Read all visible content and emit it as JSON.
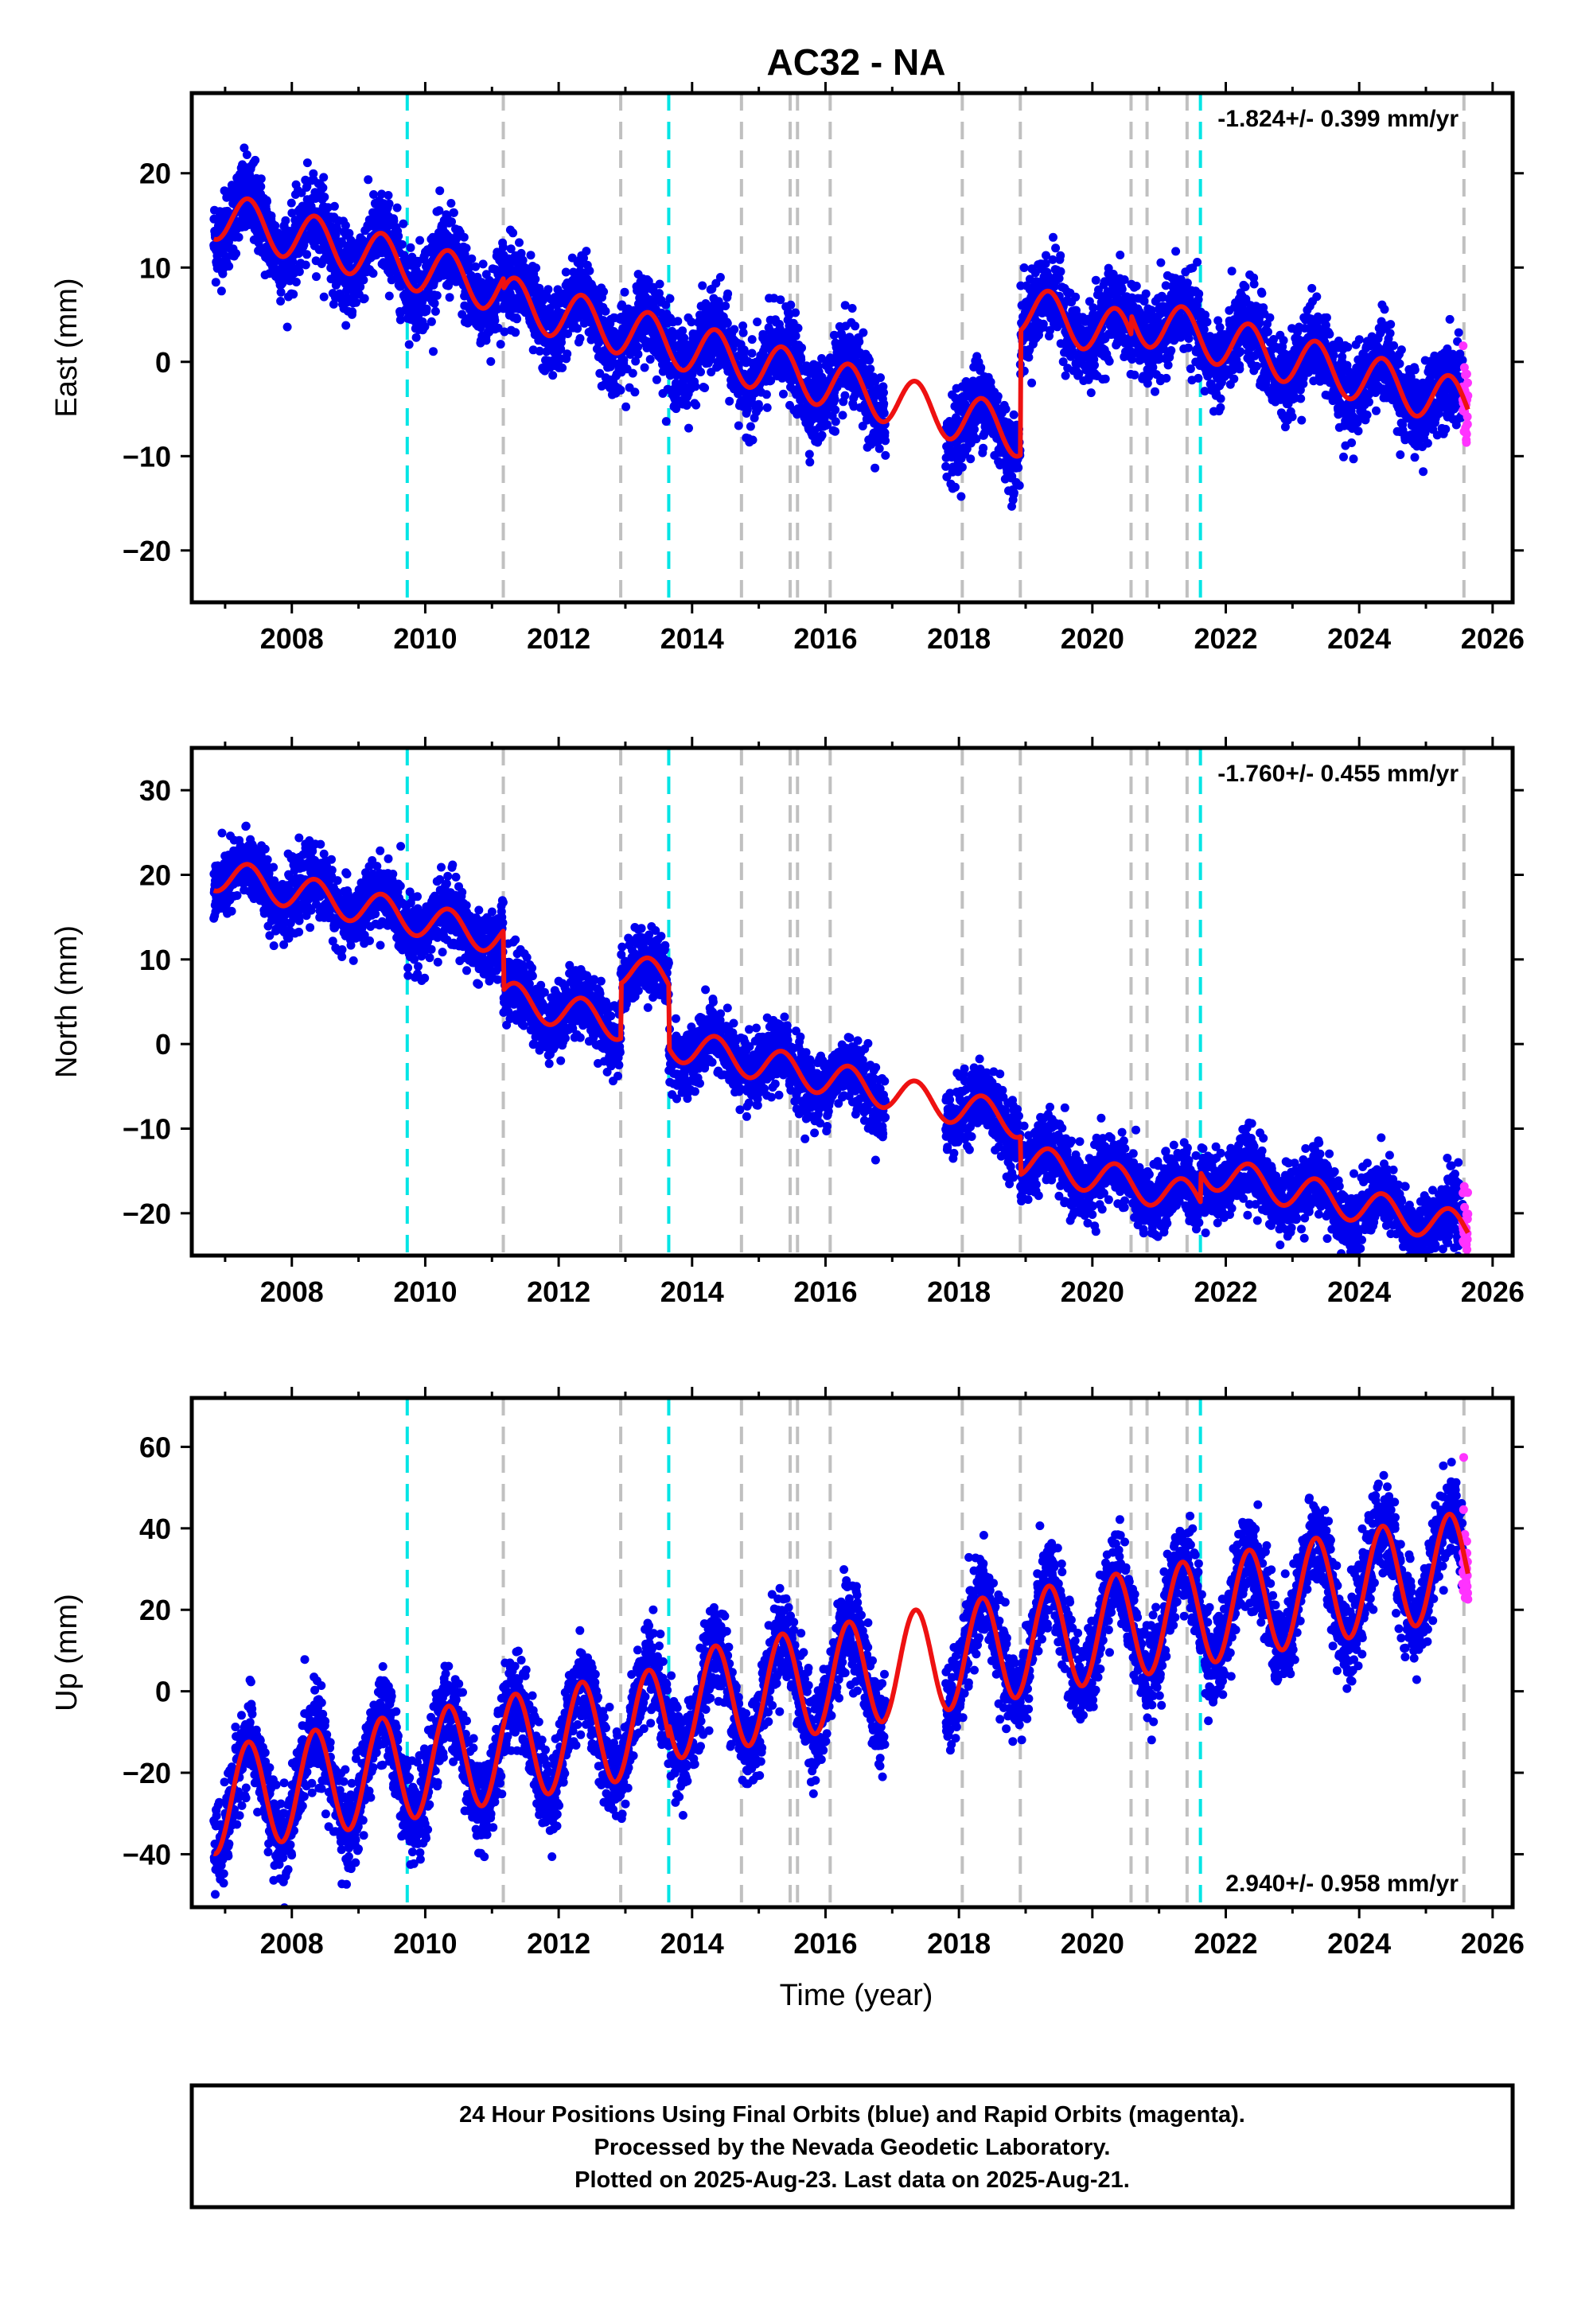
{
  "title": "AC32 - NA",
  "x_axis_label": "Time (year)",
  "caption_lines": [
    "24 Hour Positions Using Final Orbits (blue) and Rapid Orbits (magenta).",
    "Processed by the Nevada Geodetic Laboratory.",
    "Plotted on 2025-Aug-23. Last data on 2025-Aug-21."
  ],
  "colors": {
    "final_orbits": "#0000ee",
    "rapid_orbits": "#ff33ff",
    "model_fit": "#ee1111",
    "equipment_change_lines": "#c0c0c0",
    "earthquake_lines": "#00e5e5"
  },
  "chart_data": [
    {
      "type": "scatter",
      "ylabel": "East (mm)",
      "xlim": [
        2006.5,
        2026.3
      ],
      "ylim": [
        -25.5,
        28.5
      ],
      "x_ticks": [
        "2008",
        "2010",
        "2012",
        "2014",
        "2016",
        "2018",
        "2020",
        "2022",
        "2024",
        "2026"
      ],
      "y_ticks": [
        "-20",
        "-10",
        "0",
        "10",
        "20"
      ],
      "rate_text": "-1.824+/- 0.399 mm/yr",
      "rate_position": "top-right",
      "vertical_lines": {
        "equipment_change": [
          2011.17,
          2012.93,
          2014.74,
          2015.47,
          2015.58,
          2016.07,
          2018.05,
          2018.92,
          2020.58,
          2020.82,
          2021.42,
          2025.57
        ],
        "earthquake": [
          2009.73,
          2013.65,
          2021.62
        ]
      },
      "model": {
        "series_name": "model fit",
        "trend_rate": -1.824,
        "annual_amplitude": 2.6,
        "segments": [
          {
            "from": 2006.83,
            "to": 2011.17,
            "offset_at_2016": -1.1
          },
          {
            "from": 2011.17,
            "to": 2018.92,
            "offset_at_2016": -2.2
          },
          {
            "from": 2018.92,
            "to": 2020.58,
            "offset_at_2016": 11.0
          },
          {
            "from": 2020.58,
            "to": 2025.63,
            "offset_at_2016": 13.0
          }
        ]
      },
      "scatter_noise_mm": 2.2,
      "final_orbits_range": [
        2006.83,
        2025.55
      ],
      "rapid_orbits_range": [
        2025.55,
        2025.63
      ],
      "data_gap": [
        2016.9,
        2017.8
      ]
    },
    {
      "type": "scatter",
      "ylabel": "North (mm)",
      "xlim": [
        2006.5,
        2026.3
      ],
      "ylim": [
        -25,
        35
      ],
      "x_ticks": [
        "2008",
        "2010",
        "2012",
        "2014",
        "2016",
        "2018",
        "2020",
        "2022",
        "2024",
        "2026"
      ],
      "y_ticks": [
        "-20",
        "-10",
        "0",
        "10",
        "20",
        "30"
      ],
      "rate_text": "-1.760+/- 0.455 mm/yr",
      "rate_position": "top-right",
      "vertical_lines": {
        "equipment_change": [
          2011.17,
          2012.93,
          2014.74,
          2015.47,
          2015.58,
          2016.07,
          2018.05,
          2018.92,
          2020.58,
          2020.82,
          2021.42,
          2025.57
        ],
        "earthquake": [
          2009.73,
          2013.65,
          2021.62
        ]
      },
      "model": {
        "series_name": "model fit",
        "trend_rate": -1.76,
        "annual_amplitude": 2.0,
        "segments": [
          {
            "from": 2006.83,
            "to": 2011.17,
            "offset_at_2016": 4.0
          },
          {
            "from": 2011.17,
            "to": 2012.93,
            "offset_at_2016": -3.0
          },
          {
            "from": 2012.93,
            "to": 2013.65,
            "offset_at_2016": 3.5
          },
          {
            "from": 2013.65,
            "to": 2018.92,
            "offset_at_2016": -4.0
          },
          {
            "from": 2018.92,
            "to": 2021.62,
            "offset_at_2016": -8.5
          },
          {
            "from": 2021.62,
            "to": 2025.63,
            "offset_at_2016": -5.0
          }
        ]
      },
      "scatter_noise_mm": 2.0,
      "final_orbits_range": [
        2006.83,
        2025.55
      ],
      "rapid_orbits_range": [
        2025.55,
        2025.63
      ],
      "data_gap": [
        2016.9,
        2017.8
      ]
    },
    {
      "type": "scatter",
      "ylabel": "Up (mm)",
      "xlim": [
        2006.5,
        2026.3
      ],
      "ylim": [
        -53,
        72
      ],
      "x_ticks": [
        "2008",
        "2010",
        "2012",
        "2014",
        "2016",
        "2018",
        "2020",
        "2022",
        "2024",
        "2026"
      ],
      "y_ticks": [
        "-40",
        "-20",
        "0",
        "20",
        "40",
        "60"
      ],
      "rate_text": "2.940+/- 0.958 mm/yr",
      "rate_position": "bottom-right",
      "vertical_lines": {
        "equipment_change": [
          2011.17,
          2012.93,
          2014.74,
          2015.47,
          2015.58,
          2016.07,
          2018.05,
          2018.92,
          2020.58,
          2020.82,
          2021.42,
          2025.57
        ],
        "earthquake": [
          2009.73,
          2013.65,
          2021.62
        ]
      },
      "model": {
        "series_name": "model fit",
        "trend_rate": 2.94,
        "annual_amplitude": 13.0,
        "segments": [
          {
            "from": 2006.83,
            "to": 2012.93,
            "offset_at_2016": 0.0
          },
          {
            "from": 2012.93,
            "to": 2013.65,
            "offset_at_2016": 0.0
          },
          {
            "from": 2013.65,
            "to": 2025.63,
            "offset_at_2016": 3.0
          }
        ]
      },
      "scatter_noise_mm": 5.5,
      "final_orbits_range": [
        2006.83,
        2025.55
      ],
      "rapid_orbits_range": [
        2025.55,
        2025.63
      ],
      "data_gap": [
        2016.9,
        2017.8
      ]
    }
  ]
}
